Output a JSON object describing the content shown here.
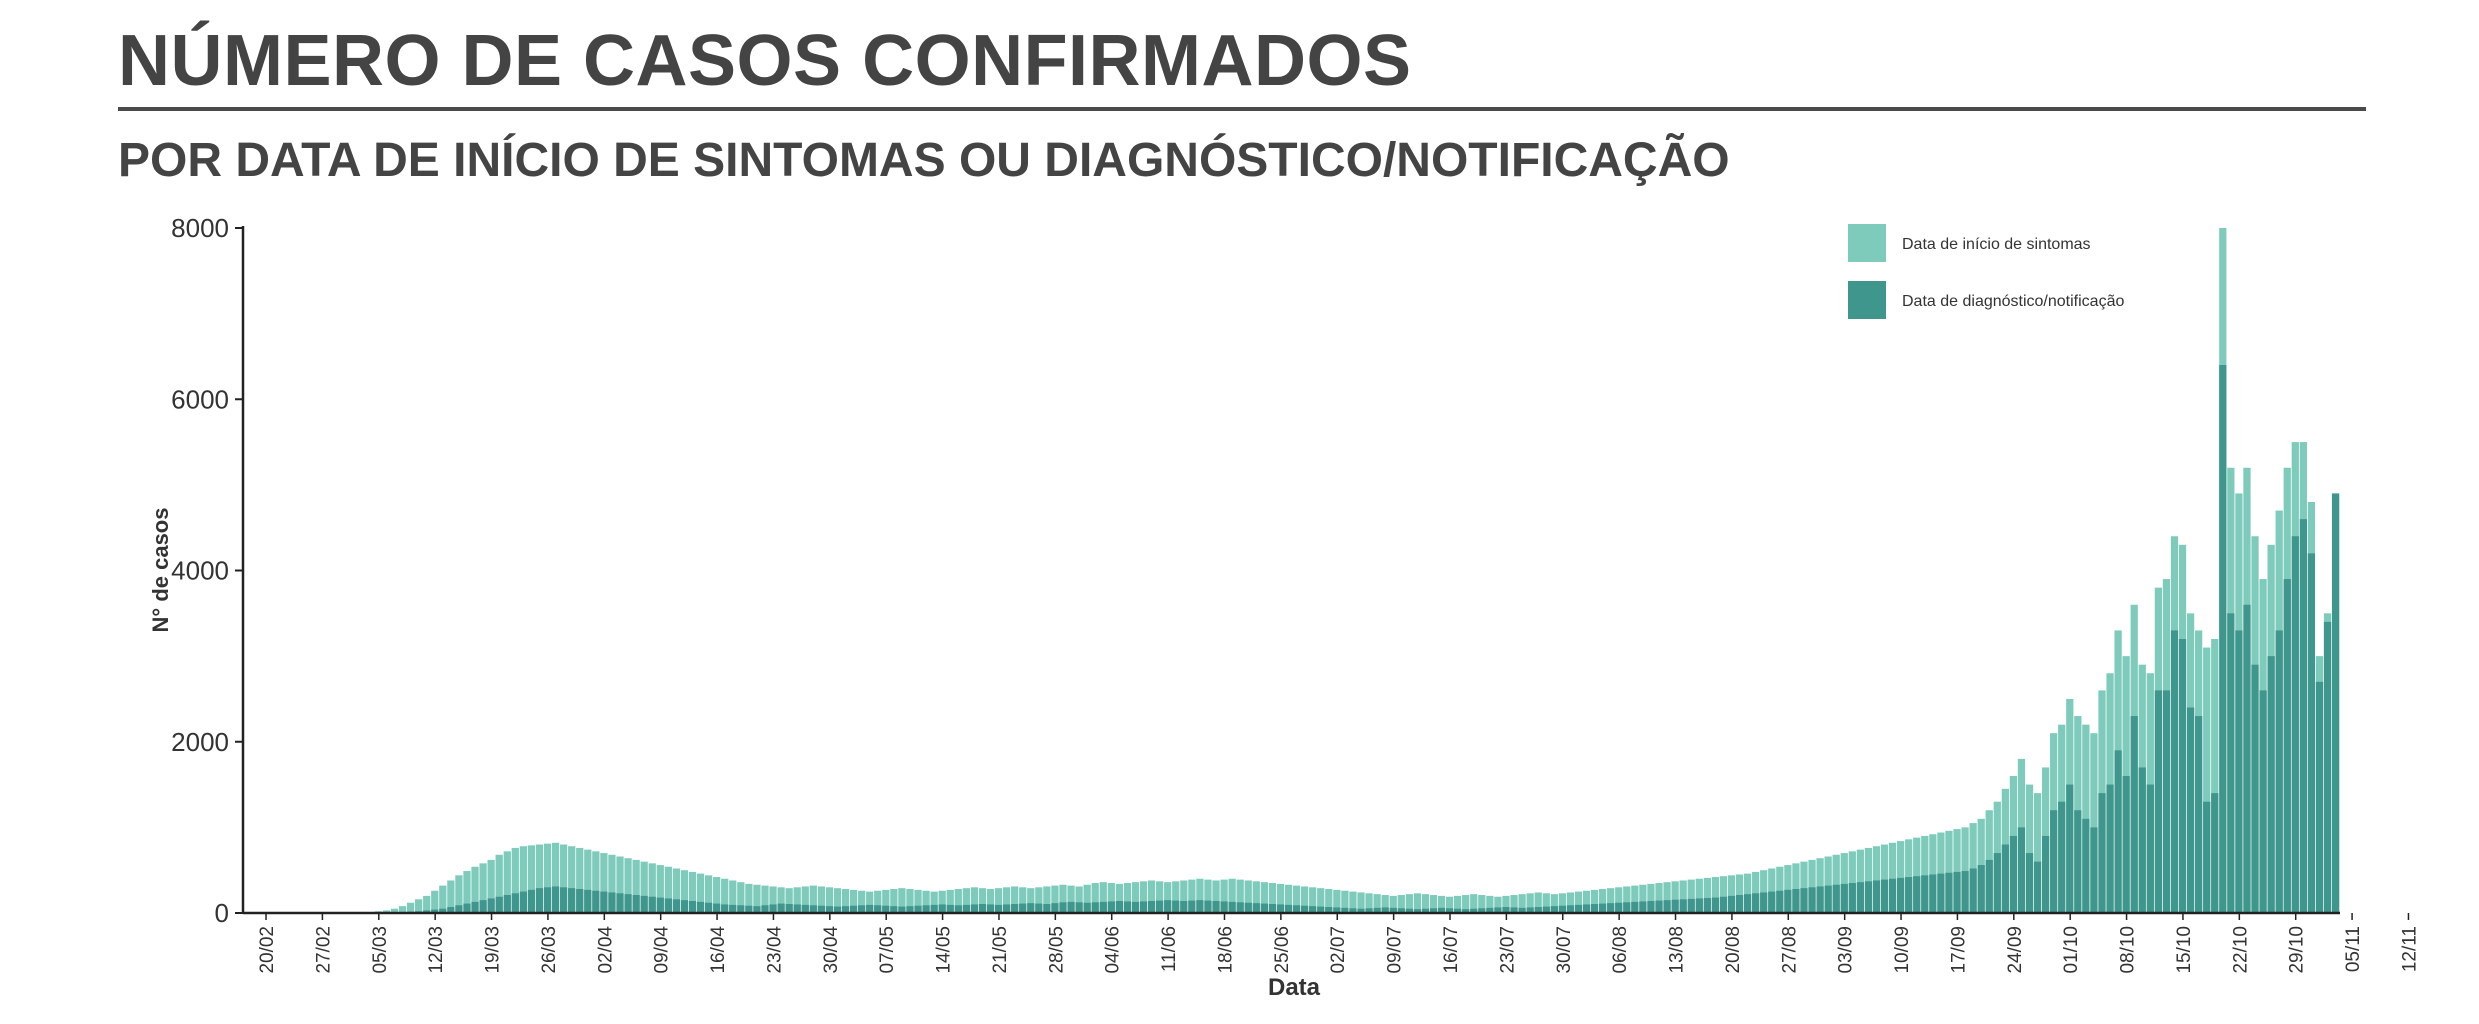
{
  "header": {
    "title": "NÚMERO DE CASOS CONFIRMADOS",
    "subtitle": "POR DATA DE INÍCIO DE SINTOMAS OU DIAGNÓSTICO/NOTIFICAÇÃO"
  },
  "colors": {
    "onset": "#7ecbbc",
    "diagnosis": "#3f968c",
    "axis": "#222222",
    "text": "#444444"
  },
  "chart_data": {
    "type": "bar",
    "stacked": false,
    "overlay": true,
    "xlabel": "Data",
    "ylabel": "N° de casos",
    "ylim": [
      0,
      8000
    ],
    "yticks": [
      0,
      2000,
      4000,
      6000,
      8000
    ],
    "grid": false,
    "legend_position": "top-right",
    "x_start": "20/02",
    "x_tick_labels": [
      "20/02",
      "27/02",
      "05/03",
      "12/03",
      "19/03",
      "26/03",
      "02/04",
      "09/04",
      "16/04",
      "23/04",
      "30/04",
      "07/05",
      "14/05",
      "21/05",
      "28/05",
      "04/06",
      "11/06",
      "18/06",
      "25/06",
      "02/07",
      "09/07",
      "16/07",
      "23/07",
      "30/07",
      "06/08",
      "13/08",
      "20/08",
      "27/08",
      "03/09",
      "10/09",
      "17/09",
      "24/09",
      "01/10",
      "08/10",
      "15/10",
      "22/10",
      "29/10",
      "05/11",
      "12/11"
    ],
    "series": [
      {
        "name": "Data de início de sintomas",
        "color": "#7ecbbc",
        "values": [
          0,
          0,
          0,
          0,
          0,
          0,
          0,
          0,
          0,
          0,
          5,
          5,
          10,
          10,
          20,
          30,
          50,
          80,
          120,
          160,
          200,
          260,
          320,
          380,
          440,
          490,
          540,
          580,
          620,
          680,
          720,
          760,
          780,
          790,
          800,
          810,
          820,
          800,
          780,
          760,
          740,
          720,
          700,
          680,
          660,
          640,
          620,
          600,
          580,
          560,
          540,
          520,
          500,
          480,
          460,
          440,
          420,
          400,
          380,
          360,
          340,
          330,
          320,
          310,
          300,
          290,
          300,
          310,
          320,
          310,
          300,
          290,
          280,
          270,
          260,
          250,
          260,
          270,
          280,
          290,
          280,
          270,
          260,
          250,
          260,
          270,
          280,
          290,
          300,
          290,
          280,
          290,
          300,
          310,
          300,
          290,
          300,
          310,
          320,
          330,
          320,
          310,
          330,
          350,
          360,
          350,
          340,
          350,
          360,
          370,
          380,
          370,
          360,
          370,
          380,
          390,
          400,
          390,
          380,
          390,
          400,
          390,
          380,
          370,
          360,
          350,
          340,
          330,
          320,
          310,
          300,
          290,
          280,
          270,
          260,
          250,
          240,
          230,
          220,
          210,
          200,
          210,
          220,
          230,
          220,
          210,
          200,
          190,
          200,
          210,
          220,
          210,
          200,
          190,
          200,
          210,
          220,
          230,
          240,
          230,
          220,
          230,
          240,
          250,
          260,
          270,
          280,
          290,
          300,
          310,
          320,
          330,
          340,
          350,
          360,
          370,
          380,
          390,
          400,
          410,
          420,
          430,
          440,
          450,
          460,
          480,
          500,
          520,
          540,
          560,
          580,
          600,
          620,
          640,
          660,
          680,
          700,
          720,
          740,
          760,
          780,
          800,
          820,
          840,
          860,
          880,
          900,
          920,
          940,
          960,
          980,
          1000,
          1050,
          1100,
          1200,
          1300,
          1450,
          1600,
          1800,
          1500,
          1400,
          1700,
          2100,
          2200,
          2500,
          2300,
          2200,
          2100,
          2600,
          2800,
          3300,
          3000,
          3600,
          2900,
          2800,
          3800,
          3900,
          4400,
          4300,
          3500,
          3300,
          3100,
          3200,
          8000,
          5200,
          4900,
          5200,
          4400,
          3900,
          4300,
          4700,
          5200,
          5500,
          5500,
          4800,
          3000,
          3500,
          4900
        ]
      },
      {
        "name": "Data de diagnóstico/notificação",
        "color": "#3f968c",
        "values": [
          0,
          0,
          0,
          0,
          0,
          0,
          0,
          0,
          0,
          0,
          0,
          0,
          0,
          2,
          3,
          5,
          8,
          10,
          15,
          20,
          30,
          40,
          50,
          70,
          90,
          110,
          130,
          150,
          170,
          190,
          210,
          230,
          250,
          270,
          290,
          300,
          310,
          300,
          290,
          280,
          270,
          260,
          250,
          240,
          230,
          220,
          210,
          200,
          190,
          180,
          170,
          160,
          150,
          140,
          130,
          120,
          110,
          100,
          95,
          90,
          85,
          80,
          90,
          100,
          110,
          105,
          100,
          95,
          90,
          85,
          80,
          75,
          80,
          85,
          90,
          95,
          90,
          85,
          80,
          75,
          80,
          85,
          90,
          95,
          100,
          95,
          90,
          95,
          100,
          105,
          100,
          95,
          100,
          105,
          110,
          115,
          110,
          105,
          115,
          125,
          130,
          125,
          120,
          125,
          130,
          135,
          140,
          135,
          130,
          135,
          140,
          145,
          150,
          145,
          140,
          145,
          150,
          145,
          140,
          135,
          130,
          125,
          120,
          115,
          110,
          105,
          100,
          95,
          90,
          85,
          80,
          75,
          70,
          65,
          60,
          55,
          50,
          55,
          60,
          65,
          60,
          55,
          50,
          45,
          50,
          55,
          60,
          55,
          50,
          45,
          50,
          55,
          60,
          65,
          70,
          65,
          60,
          65,
          70,
          75,
          80,
          85,
          90,
          95,
          100,
          105,
          110,
          115,
          120,
          125,
          130,
          135,
          140,
          145,
          150,
          155,
          160,
          165,
          170,
          175,
          180,
          190,
          200,
          210,
          220,
          230,
          240,
          250,
          260,
          270,
          280,
          290,
          300,
          310,
          320,
          330,
          340,
          350,
          360,
          370,
          380,
          390,
          400,
          410,
          420,
          430,
          440,
          450,
          460,
          470,
          480,
          490,
          520,
          560,
          620,
          700,
          800,
          900,
          1000,
          700,
          600,
          900,
          1200,
          1300,
          1500,
          1200,
          1100,
          1000,
          1400,
          1500,
          1900,
          1600,
          2300,
          1700,
          1500,
          2600,
          2600,
          3300,
          3200,
          2400,
          2300,
          1300,
          1400,
          6400,
          3500,
          3300,
          3600,
          2900,
          2600,
          3000,
          3300,
          3900,
          4400,
          4600,
          4200,
          2700,
          3400,
          4900
        ]
      }
    ]
  }
}
